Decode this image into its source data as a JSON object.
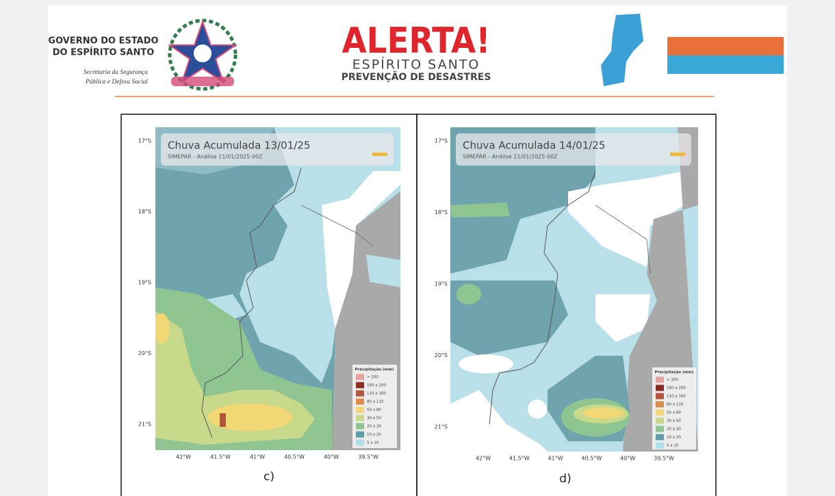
{
  "header": {
    "agency": [
      "GOVERNO DO ESTADO",
      "DO ESPÍRITO SANTO"
    ],
    "department": [
      "Secretaria da Segurança",
      "Pública e Defesa Social"
    ],
    "alert": "ALERTA!",
    "state": "ESPÍRITO SANTO",
    "program": "PREVENÇÃO DE DESASTRES"
  },
  "panels": [
    {
      "title": "Chuva Acumulada 13/01/25",
      "source": "SIMEPAR  -  Análise 11/01/2025 00Z",
      "caption": "c)"
    },
    {
      "title": "Chuva Acumulada 14/01/25",
      "source": "SIMEPAR  -  Análise 11/01/2025 00Z",
      "caption": "d)"
    }
  ],
  "latitudes": [
    "17°S",
    "18°S",
    "19°S",
    "20°S",
    "21°S"
  ],
  "longitudes": [
    "42°W",
    "41.5°W",
    "41°W",
    "40.5°W",
    "40°W",
    "39.5°W"
  ],
  "legend": {
    "title": "Precipitação (mm)",
    "classes": [
      "> 200",
      "160 a 200",
      "110 a 160",
      "80 a 110",
      "50 a 80",
      "30 a 50",
      "20 a 30",
      "10 a 20",
      "5 a 10"
    ],
    "colors": [
      "#e9a3a0",
      "#8a2c22",
      "#b4553c",
      "#d98c4c",
      "#f1d874",
      "#c9d98c",
      "#8fc591",
      "#5f9dab",
      "#afdfe9"
    ]
  }
}
